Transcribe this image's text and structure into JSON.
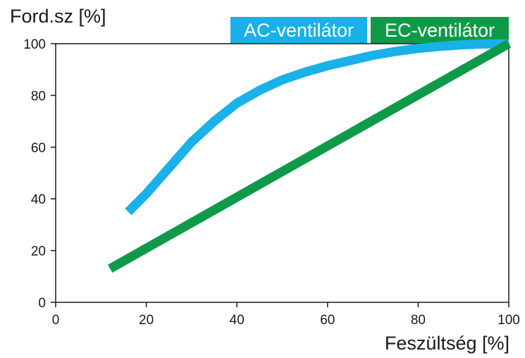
{
  "chart_data": {
    "type": "line",
    "ylabel": "Ford.sz [%]",
    "xlabel": "Feszültség [%]",
    "xlim": [
      0,
      100
    ],
    "ylim": [
      0,
      100
    ],
    "xticks": [
      "0",
      "20",
      "40",
      "60",
      "80",
      "100"
    ],
    "yticks": [
      "0",
      "20",
      "40",
      "60",
      "80",
      "100"
    ],
    "grid": false,
    "legend_position": "top-right, above plot",
    "series": [
      {
        "name": "AC-ventilátor",
        "color": "#1ab0e8",
        "x": [
          16,
          20,
          25,
          30,
          35,
          40,
          45,
          50,
          55,
          60,
          65,
          70,
          75,
          80,
          85,
          90,
          95,
          100
        ],
        "y": [
          35,
          42,
          52,
          62,
          70,
          77,
          82,
          86,
          89,
          91.5,
          93.5,
          95.5,
          97,
          98.2,
          99,
          99.6,
          99.9,
          100
        ]
      },
      {
        "name": "EC-ventilátor",
        "color": "#0f9a4a",
        "x": [
          12,
          100
        ],
        "y": [
          13,
          100
        ]
      }
    ]
  }
}
